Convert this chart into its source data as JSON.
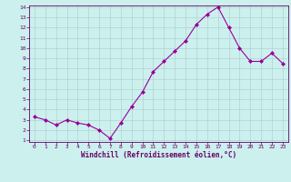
{
  "x": [
    0,
    1,
    2,
    3,
    4,
    5,
    6,
    7,
    8,
    9,
    10,
    11,
    12,
    13,
    14,
    15,
    16,
    17,
    18,
    19,
    20,
    21,
    22,
    23
  ],
  "y": [
    3.3,
    3.0,
    2.5,
    3.0,
    2.7,
    2.5,
    2.0,
    1.2,
    2.7,
    4.3,
    5.7,
    7.7,
    8.7,
    9.7,
    10.7,
    12.3,
    13.3,
    14.0,
    12.0,
    10.0,
    8.7,
    8.7,
    9.5,
    8.5
  ],
  "line_color": "#990099",
  "marker": "D",
  "marker_size": 2.0,
  "bg_color": "#ccf0ee",
  "grid_color": "#aacccc",
  "xlabel": "Windchill (Refroidissement éolien,°C)",
  "xlabel_color": "#660066",
  "tick_label_color": "#660066",
  "ylim_min": 1,
  "ylim_max": 14,
  "xlim_min": -0.5,
  "xlim_max": 23.5,
  "yticks": [
    1,
    2,
    3,
    4,
    5,
    6,
    7,
    8,
    9,
    10,
    11,
    12,
    13,
    14
  ],
  "xticks": [
    0,
    1,
    2,
    3,
    4,
    5,
    6,
    7,
    8,
    9,
    10,
    11,
    12,
    13,
    14,
    15,
    16,
    17,
    18,
    19,
    20,
    21,
    22,
    23
  ],
  "spine_color": "#660066",
  "figsize": [
    3.2,
    2.0
  ],
  "dpi": 100
}
